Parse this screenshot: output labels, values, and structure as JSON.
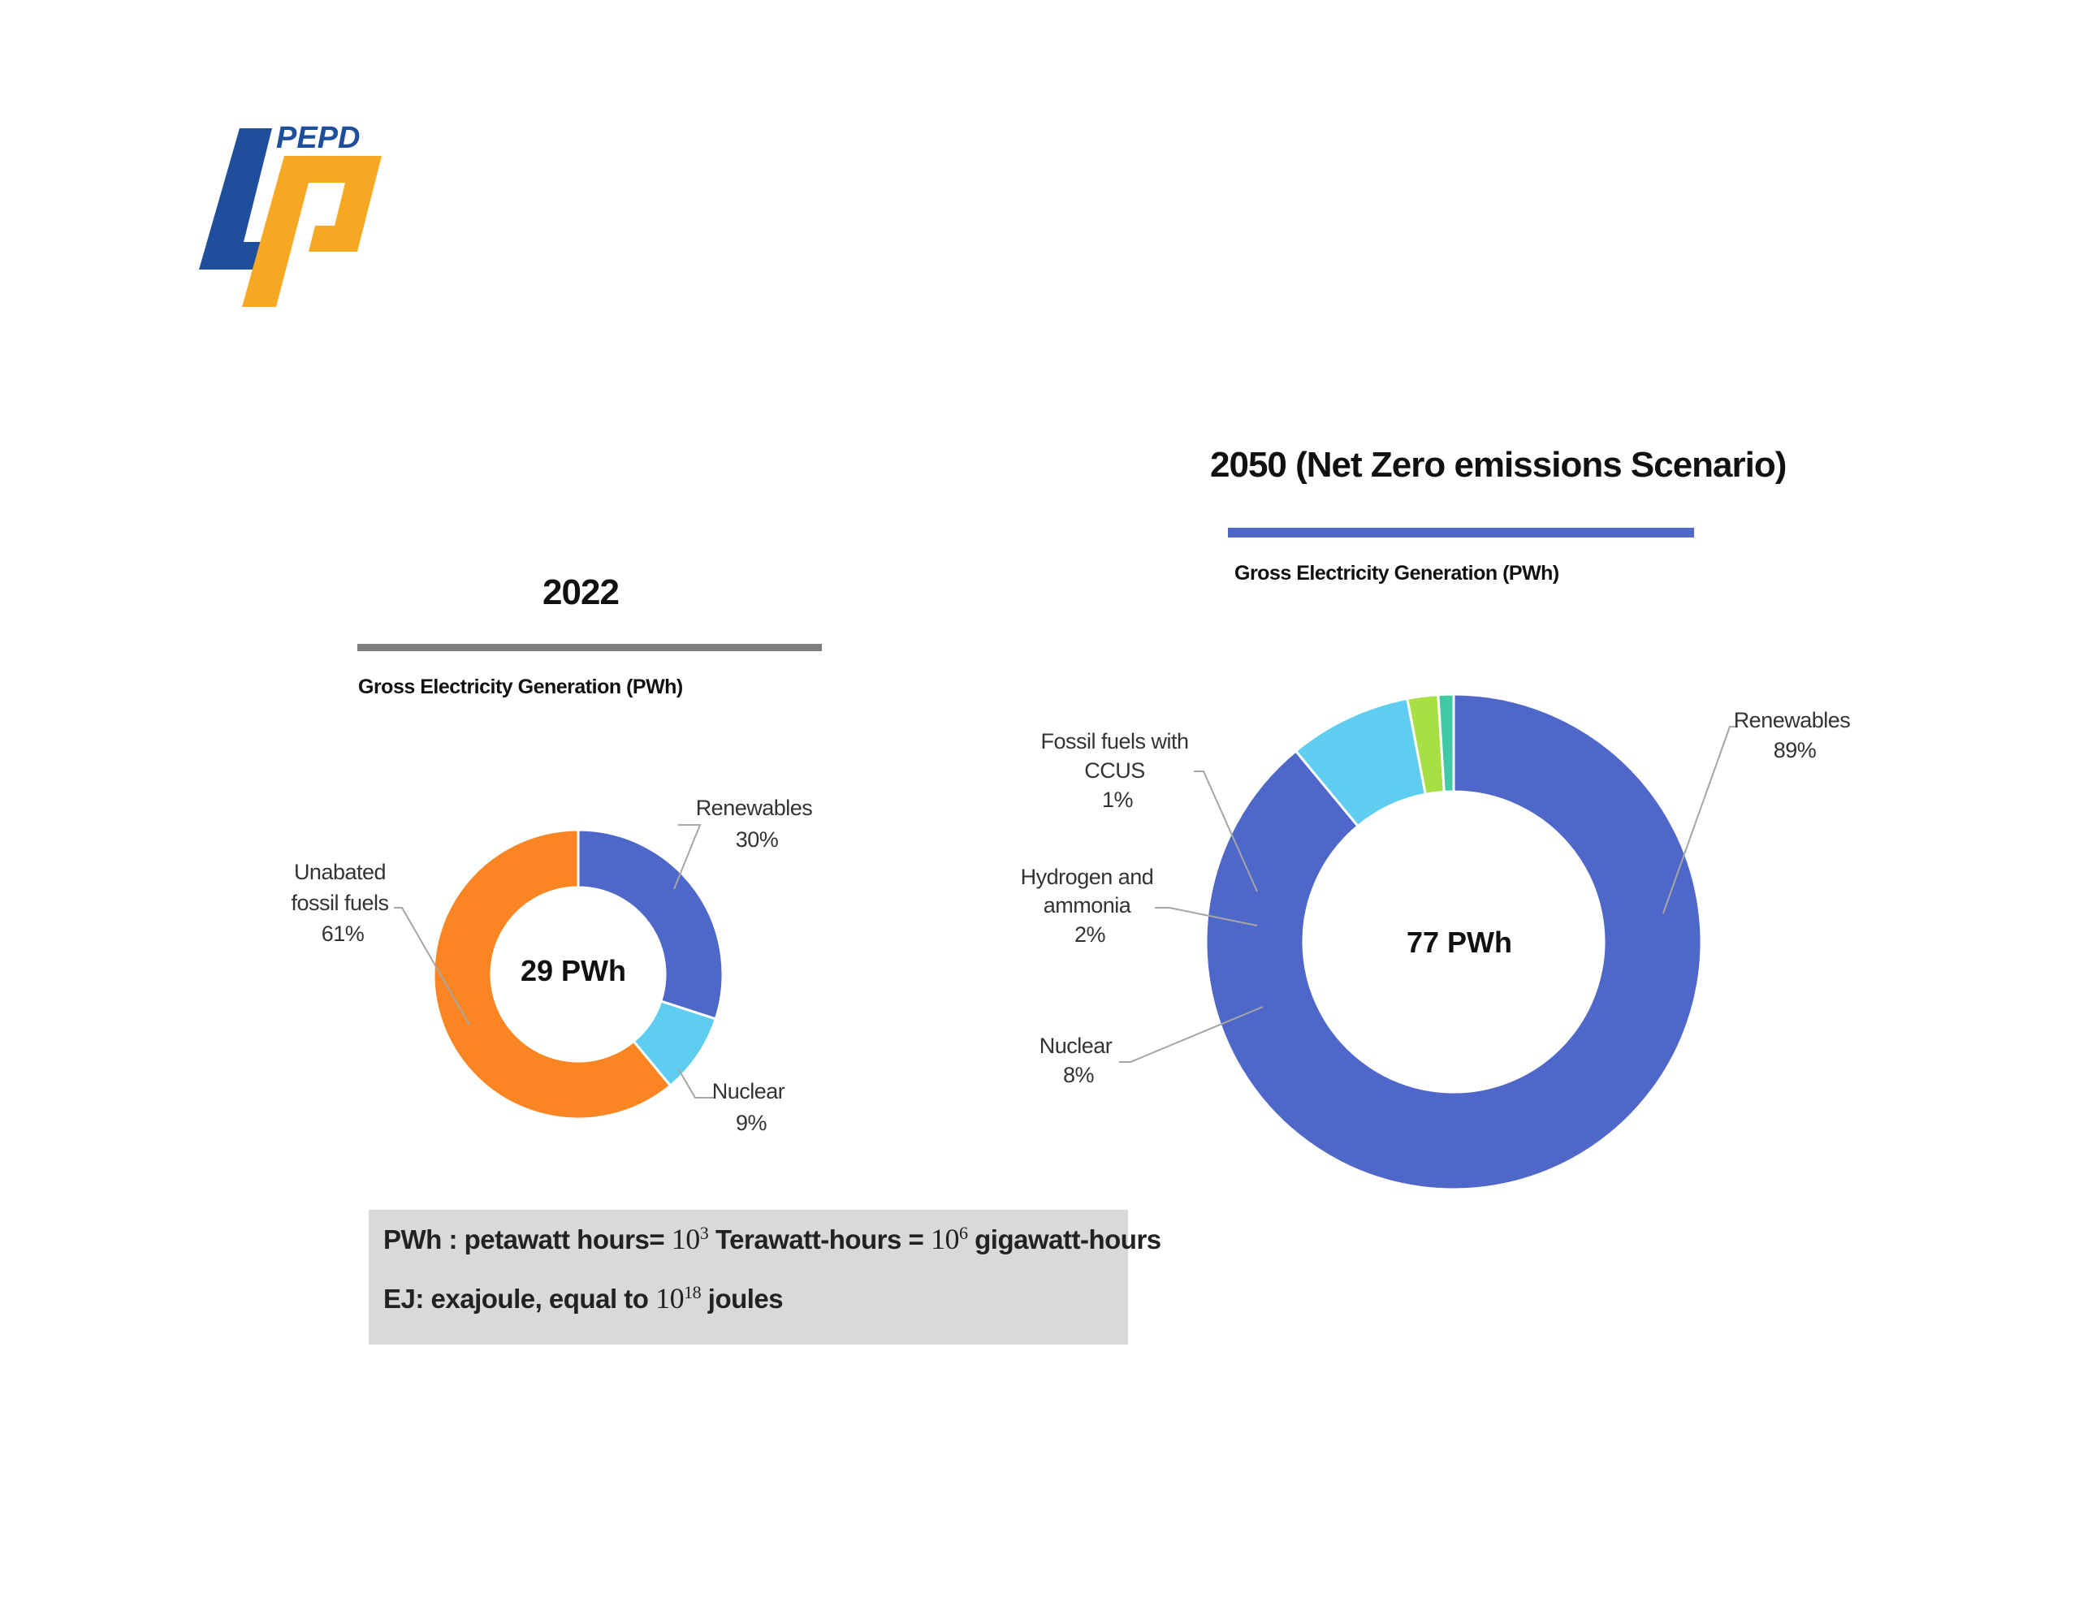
{
  "logo": {
    "text": "PEPD",
    "colors": {
      "blue": "#1f4e9c",
      "orange": "#f7a823"
    }
  },
  "charts": {
    "c2022": {
      "title": "2022",
      "subtitle": "Gross Electricity Generation (PWh)",
      "center_label": "29 PWh",
      "labels": {
        "renewables": [
          "Renewables",
          "30%"
        ],
        "nuclear": [
          "Nuclear",
          "9%"
        ],
        "unabated": [
          "Unabated",
          "fossil fuels",
          "61%"
        ]
      }
    },
    "c2050": {
      "title": "2050 (Net Zero emissions Scenario)",
      "subtitle": "Gross Electricity Generation (PWh)",
      "center_label": "77 PWh",
      "labels": {
        "renewables": [
          "Renewables",
          "89%"
        ],
        "ccus": [
          "Fossil fuels with",
          "CCUS",
          "1%"
        ],
        "hydrogen": [
          "Hydrogen and",
          "ammonia",
          "2%"
        ],
        "nuclear": [
          "Nuclear",
          "8%"
        ]
      }
    }
  },
  "notes": {
    "line1_a": "PWh : petawatt hours= ",
    "line1_b": "10",
    "line1_c": "3",
    "line1_d": " Terawatt-hours = ",
    "line1_e": "10",
    "line1_f": "6",
    "line1_g": " gigawatt-hours",
    "line2_a": "EJ: exajoule, equal to ",
    "line2_b": "10",
    "line2_c": "18",
    "line2_d": " joules"
  },
  "colors": {
    "renewables": "#4f67c8",
    "nuclear": "#5ecdf0",
    "unabated": "#fb8522",
    "hydrogen": "#a8e044",
    "ccus": "#3fc9a6",
    "bar_2022": "#7f7f7f",
    "bar_2050": "#4f67c8"
  },
  "chart_data": [
    {
      "type": "pie",
      "title": "2022",
      "subtitle": "Gross Electricity Generation (PWh)",
      "center_label": "29 PWh",
      "categories": [
        "Renewables",
        "Nuclear",
        "Unabated fossil fuels"
      ],
      "values": [
        30,
        9,
        61
      ],
      "unit": "%"
    },
    {
      "type": "pie",
      "title": "2050 (Net Zero emissions Scenario)",
      "subtitle": "Gross Electricity Generation (PWh)",
      "center_label": "77 PWh",
      "categories": [
        "Renewables",
        "Nuclear",
        "Hydrogen and ammonia",
        "Fossil fuels with CCUS"
      ],
      "values": [
        89,
        8,
        2,
        1
      ],
      "unit": "%"
    }
  ]
}
